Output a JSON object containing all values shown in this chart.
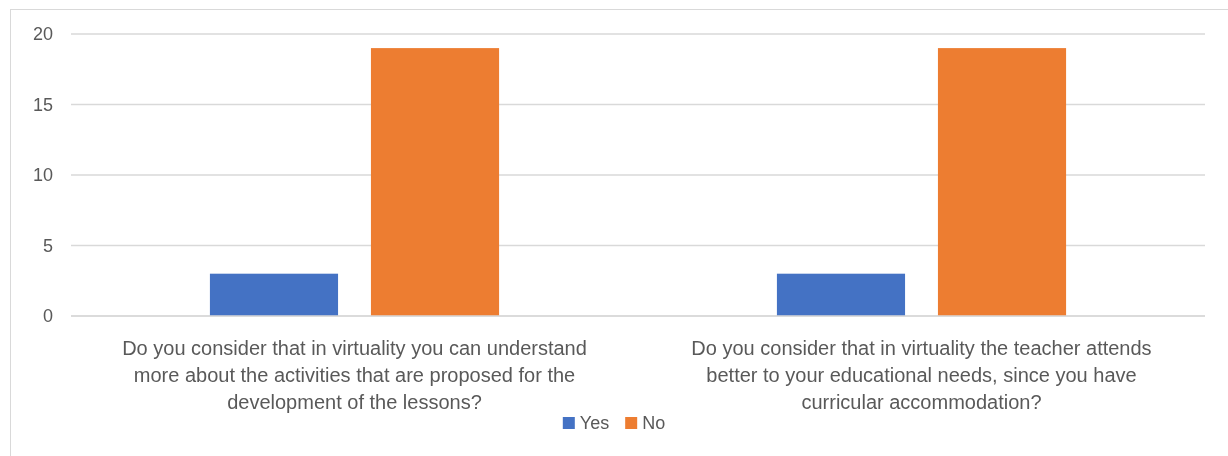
{
  "chart_data": {
    "type": "bar",
    "categories": [
      "Do you consider that in virtuality you can understand more about the activities that are proposed for the development of the lessons?",
      "Do you consider that in virtuality the teacher attends better to your educational needs, since you have curricular accommodation?"
    ],
    "series": [
      {
        "name": "Yes",
        "color": "#4472c4",
        "values": [
          3,
          3
        ]
      },
      {
        "name": "No",
        "color": "#ed7d31",
        "values": [
          19,
          19
        ]
      }
    ],
    "ylim": [
      0,
      20
    ],
    "yticks": [
      0,
      5,
      10,
      15,
      20
    ],
    "grid": "y",
    "legend": "bottom"
  }
}
